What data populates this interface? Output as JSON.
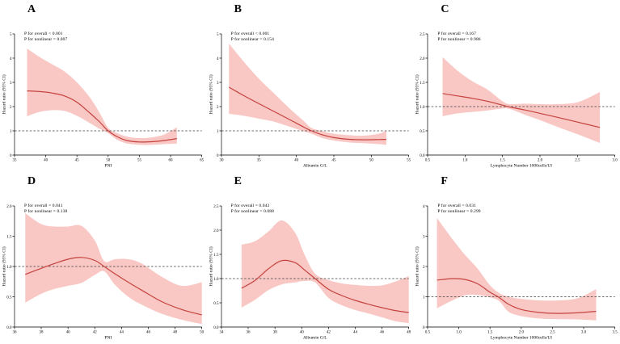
{
  "figure": {
    "background": "#ffffff",
    "colors": {
      "curve": "#c5423d",
      "band": "#f9c8c5",
      "reference_line": "#3d3d3d",
      "axis": "#000000"
    }
  },
  "chart_data": [
    {
      "type": "line",
      "panel": "A",
      "p_overall": "P for overall < 0.001",
      "p_nonlinear": "P for nonlinear = 0.007",
      "xlabel": "PNI",
      "ylabel": "Hazard ratio (95% CI)",
      "xlim": [
        35,
        65
      ],
      "ylim": [
        0,
        5
      ],
      "xticks": [
        35,
        40,
        45,
        50,
        55,
        60,
        65
      ],
      "xtick_labels": [
        "35",
        "40",
        "45",
        "50",
        "55",
        "60",
        "65"
      ],
      "yticks": [
        0,
        1,
        2,
        3,
        4,
        5
      ],
      "ytick_labels": [
        "0",
        "1",
        "2",
        "3",
        "4",
        "5"
      ],
      "ref_line": 1.0,
      "x": [
        37,
        39,
        41,
        43,
        45,
        47,
        48.5,
        50,
        51.5,
        53,
        55,
        57,
        59,
        61
      ],
      "hr": [
        2.65,
        2.62,
        2.56,
        2.44,
        2.18,
        1.75,
        1.4,
        1.0,
        0.75,
        0.6,
        0.54,
        0.55,
        0.6,
        0.68
      ],
      "ci_lower": [
        1.6,
        1.78,
        1.85,
        1.82,
        1.62,
        1.33,
        1.1,
        0.9,
        0.62,
        0.48,
        0.42,
        0.42,
        0.45,
        0.47
      ],
      "ci_upper": [
        4.4,
        4.05,
        3.75,
        3.45,
        3.0,
        2.4,
        1.8,
        1.12,
        0.9,
        0.76,
        0.7,
        0.73,
        0.85,
        1.15
      ]
    },
    {
      "type": "line",
      "panel": "B",
      "p_overall": "P for overall < 0.001",
      "p_nonlinear": "P for nonlinear = 0.154",
      "xlabel": "Albumin G/L",
      "ylabel": "Hazard ratio (95% CI)",
      "xlim": [
        30,
        55
      ],
      "ylim": [
        0,
        5
      ],
      "xticks": [
        30,
        35,
        40,
        45,
        50,
        55
      ],
      "xtick_labels": [
        "30",
        "35",
        "40",
        "45",
        "50",
        "55"
      ],
      "yticks": [
        0,
        1,
        2,
        3,
        4,
        5
      ],
      "ytick_labels": [
        "0",
        "1",
        "2",
        "3",
        "4",
        "5"
      ],
      "ref_line": 1.0,
      "x": [
        31,
        33,
        35,
        37,
        39,
        41,
        42,
        43.5,
        45,
        47,
        49,
        51,
        52
      ],
      "hr": [
        2.8,
        2.45,
        2.12,
        1.8,
        1.48,
        1.15,
        1.0,
        0.83,
        0.72,
        0.65,
        0.63,
        0.64,
        0.65
      ],
      "ci_lower": [
        1.7,
        1.62,
        1.5,
        1.38,
        1.18,
        0.98,
        0.88,
        0.7,
        0.6,
        0.52,
        0.49,
        0.45,
        0.42
      ],
      "ci_upper": [
        4.6,
        3.85,
        3.15,
        2.55,
        1.95,
        1.4,
        1.12,
        0.98,
        0.88,
        0.82,
        0.8,
        0.88,
        1.0
      ]
    },
    {
      "type": "line",
      "panel": "C",
      "p_overall": "P for overall = 0.167",
      "p_nonlinear": "P for nonlinear = 0.986",
      "xlabel": "Lymphocyte Number 1000cells/Ul",
      "ylabel": "Hazard ratio (95% CI)",
      "xlim": [
        0.5,
        3.0
      ],
      "ylim": [
        0,
        2.5
      ],
      "xticks": [
        0.5,
        1.0,
        1.5,
        2.0,
        2.5,
        3.0
      ],
      "xtick_labels": [
        "0.5",
        "1.0",
        "1.5",
        "2.0",
        "2.5",
        "3.0"
      ],
      "yticks": [
        0,
        0.5,
        1.0,
        1.5,
        2.0,
        2.5
      ],
      "ytick_labels": [
        "0.0",
        "0.5",
        "1.0",
        "1.5",
        "2.0",
        "2.5"
      ],
      "ref_line": 1.0,
      "x": [
        0.7,
        0.9,
        1.1,
        1.3,
        1.5,
        1.6,
        1.8,
        2.0,
        2.2,
        2.5,
        2.8
      ],
      "hr": [
        1.27,
        1.22,
        1.17,
        1.11,
        1.03,
        0.99,
        0.93,
        0.86,
        0.79,
        0.68,
        0.57
      ],
      "ci_lower": [
        0.8,
        0.86,
        0.89,
        0.92,
        0.96,
        0.95,
        0.83,
        0.72,
        0.6,
        0.43,
        0.25
      ],
      "ci_upper": [
        2.02,
        1.74,
        1.52,
        1.35,
        1.11,
        1.05,
        1.06,
        1.05,
        1.05,
        1.09,
        1.3
      ]
    },
    {
      "type": "line",
      "panel": "D",
      "p_overall": "P for overall = 0.041",
      "p_nonlinear": "P for nonlinear = 0.138",
      "xlabel": "PNI",
      "ylabel": "Hazard ratio (95% CI)",
      "xlim": [
        36,
        50
      ],
      "ylim": [
        0,
        2.0
      ],
      "xticks": [
        36,
        38,
        40,
        42,
        44,
        46,
        48,
        50
      ],
      "xtick_labels": [
        "36",
        "38",
        "40",
        "42",
        "44",
        "46",
        "48",
        "50"
      ],
      "yticks": [
        0,
        0.5,
        1.0,
        1.5,
        2.0
      ],
      "ytick_labels": [
        "0.0",
        "0.5",
        "1.0",
        "1.5",
        "2.0"
      ],
      "ref_line": 1.0,
      "x": [
        36.8,
        38,
        39,
        40,
        41,
        42,
        42.7,
        43.5,
        44.5,
        45.5,
        47,
        48.5,
        50
      ],
      "hr": [
        0.87,
        0.97,
        1.05,
        1.12,
        1.15,
        1.1,
        1.0,
        0.88,
        0.74,
        0.61,
        0.42,
        0.29,
        0.2
      ],
      "ci_lower": [
        0.4,
        0.55,
        0.63,
        0.68,
        0.73,
        0.86,
        0.92,
        0.7,
        0.5,
        0.37,
        0.22,
        0.12,
        0.05
      ],
      "ci_upper": [
        1.88,
        1.7,
        1.66,
        1.66,
        1.67,
        1.43,
        1.09,
        1.12,
        1.12,
        1.05,
        0.83,
        0.68,
        0.74
      ]
    },
    {
      "type": "line",
      "panel": "E",
      "p_overall": "P for overall = 0.043",
      "p_nonlinear": "P for nonlinear = 0.088",
      "xlabel": "Albumin G/L",
      "ylabel": "Hazard ratio (95% CI)",
      "xlim": [
        34,
        48
      ],
      "ylim": [
        0,
        2.5
      ],
      "xticks": [
        34,
        36,
        38,
        40,
        42,
        44,
        46,
        48
      ],
      "xtick_labels": [
        "34",
        "36",
        "38",
        "40",
        "42",
        "44",
        "46",
        "48"
      ],
      "yticks": [
        0,
        0.5,
        1.0,
        1.5,
        2.0,
        2.5
      ],
      "ytick_labels": [
        "0.0",
        "0.5",
        "1.0",
        "1.5",
        "2.0",
        "2.5"
      ],
      "ref_line": 1.0,
      "x": [
        35.5,
        36.5,
        37.5,
        38.5,
        39.5,
        40.2,
        41,
        42,
        43,
        44,
        45,
        46,
        47,
        48
      ],
      "hr": [
        0.8,
        0.96,
        1.2,
        1.37,
        1.33,
        1.18,
        1.0,
        0.78,
        0.65,
        0.55,
        0.47,
        0.4,
        0.34,
        0.3
      ],
      "ci_lower": [
        0.4,
        0.56,
        0.76,
        0.88,
        0.92,
        0.95,
        0.92,
        0.6,
        0.45,
        0.35,
        0.28,
        0.2,
        0.12,
        0.08
      ],
      "ci_upper": [
        1.7,
        1.77,
        1.97,
        2.2,
        1.95,
        1.5,
        1.1,
        0.97,
        0.9,
        0.87,
        0.85,
        0.86,
        0.94,
        1.05
      ]
    },
    {
      "type": "line",
      "panel": "F",
      "p_overall": "P for overall = 0.031",
      "p_nonlinear": "P for nonlinear = 0.299",
      "xlabel": "Lymphocyte Number 1000cells/Ul",
      "ylabel": "Hazard ratio (95% CI)",
      "xlim": [
        0.5,
        3.5
      ],
      "ylim": [
        0,
        4
      ],
      "xticks": [
        0.5,
        1.0,
        1.5,
        2.0,
        2.5,
        3.0,
        3.5
      ],
      "xtick_labels": [
        "0.5",
        "1.0",
        "1.5",
        "2.0",
        "2.5",
        "3.0",
        "3.5"
      ],
      "yticks": [
        0,
        1,
        2,
        3,
        4
      ],
      "ytick_labels": [
        "0",
        "1",
        "2",
        "3",
        "4"
      ],
      "ref_line": 1.0,
      "x": [
        0.65,
        0.9,
        1.1,
        1.3,
        1.5,
        1.65,
        1.8,
        2.0,
        2.3,
        2.6,
        2.9,
        3.2
      ],
      "hr": [
        1.55,
        1.6,
        1.57,
        1.43,
        1.15,
        0.97,
        0.75,
        0.58,
        0.48,
        0.45,
        0.47,
        0.52
      ],
      "ci_lower": [
        0.62,
        0.88,
        1.05,
        1.06,
        0.98,
        0.85,
        0.5,
        0.36,
        0.28,
        0.26,
        0.25,
        0.22
      ],
      "ci_upper": [
        3.6,
        2.9,
        2.38,
        1.93,
        1.38,
        1.12,
        1.0,
        0.93,
        0.88,
        0.88,
        0.95,
        1.25
      ]
    }
  ]
}
